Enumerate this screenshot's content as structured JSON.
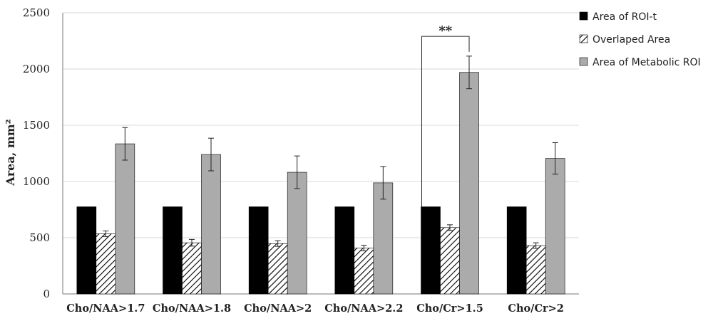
{
  "chart_data": {
    "type": "bar",
    "title": "",
    "xlabel": "",
    "ylabel": "Area, mm²",
    "ylim": [
      0,
      2500
    ],
    "yticks": [
      0,
      500,
      1000,
      1500,
      2000,
      2500
    ],
    "grid": true,
    "legend_position": "right",
    "categories": [
      "Cho/NAA>1.7",
      "Cho/NAA>1.8",
      "Cho/NAA>2",
      "Cho/NAA>2.2",
      "Cho/Cr>1.5",
      "Cho/Cr>2"
    ],
    "series": [
      {
        "name": "Area of ROI-t",
        "fill": "solid",
        "color": "#000000",
        "values": [
          775,
          775,
          775,
          775,
          775,
          775
        ],
        "errors": [
          0,
          0,
          0,
          0,
          0,
          0
        ]
      },
      {
        "name": "Overlaped Area",
        "fill": "hatched",
        "color": "#000000",
        "values": [
          535,
          455,
          448,
          408,
          590,
          430
        ],
        "errors": [
          25,
          30,
          25,
          25,
          25,
          25
        ]
      },
      {
        "name": "Area of Metabolic ROI",
        "fill": "solid",
        "color": "#ababab",
        "values": [
          1335,
          1240,
          1082,
          988,
          1970,
          1205
        ],
        "errors": [
          145,
          145,
          145,
          145,
          145,
          140
        ]
      }
    ],
    "annotation": {
      "text": "**",
      "from": {
        "category": "Cho/Cr>1.5",
        "series": "Area of ROI-t"
      },
      "to": {
        "category": "Cho/Cr>1.5",
        "series": "Area of Metabolic ROI"
      }
    }
  }
}
